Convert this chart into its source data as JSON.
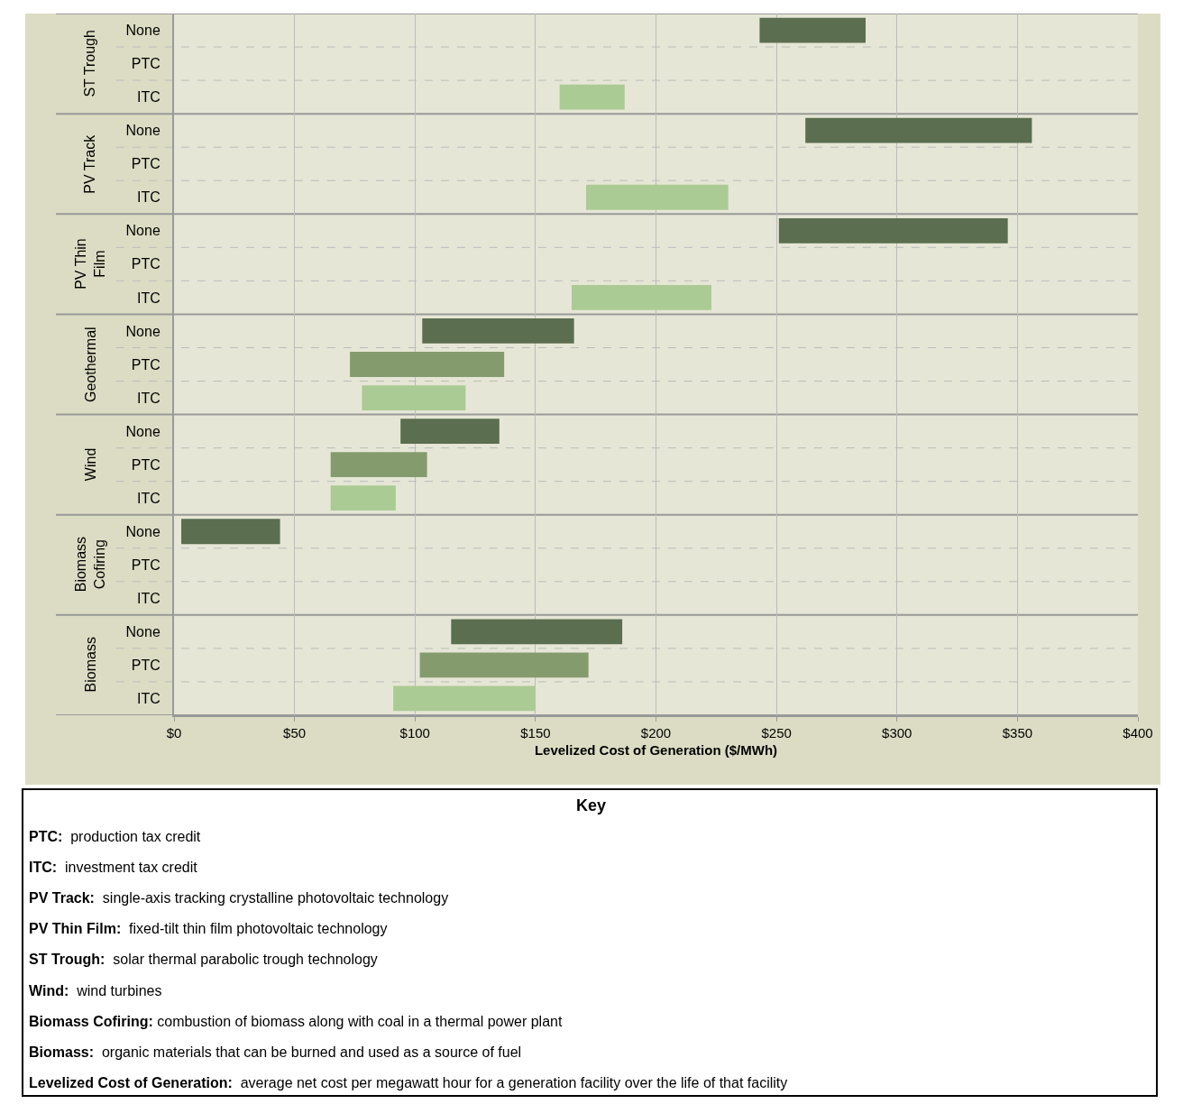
{
  "chart_data": {
    "type": "bar",
    "orientation": "horizontal",
    "xlabel": "Levelized Cost of Generation ($/MWh)",
    "categories": [
      "None",
      "PTC",
      "ITC",
      "None",
      "PTC",
      "ITC",
      "None",
      "PTC",
      "ITC",
      "None",
      "PTC",
      "ITC",
      "None",
      "PTC",
      "ITC",
      "None",
      "PTC",
      "ITC",
      "None",
      "PTC",
      "ITC"
    ],
    "base": [
      243,
      null,
      160,
      262,
      null,
      171,
      251,
      null,
      165,
      103,
      73,
      78,
      94,
      65,
      65,
      3,
      null,
      null,
      115,
      102,
      91
    ],
    "values": [
      44,
      null,
      27,
      94,
      null,
      59,
      95,
      null,
      58,
      63,
      64,
      43,
      41,
      40,
      27,
      41,
      null,
      null,
      71,
      70,
      59
    ],
    "colors": [
      "#5b6e4f",
      "#849b6e",
      "#aacb93",
      "#5b6e4f",
      "#849b6e",
      "#aacb93",
      "#5b6e4f",
      "#849b6e",
      "#aacb93",
      "#5b6e4f",
      "#849b6e",
      "#aacb93",
      "#5b6e4f",
      "#849b6e",
      "#aacb93",
      "#5b6e4f",
      "#849b6e",
      "#aacb93",
      "#5b6e4f",
      "#849b6e",
      "#aacb93"
    ],
    "xlim": [
      0,
      400
    ],
    "xticks": [
      {
        "value": 0,
        "label": "$0"
      },
      {
        "value": 50,
        "label": "$50"
      },
      {
        "value": 100,
        "label": "$100"
      },
      {
        "value": 150,
        "label": "$150"
      },
      {
        "value": 200,
        "label": "$200"
      },
      {
        "value": 250,
        "label": "$250"
      },
      {
        "value": 300,
        "label": "$300"
      },
      {
        "value": 350,
        "label": "$350"
      },
      {
        "value": 400,
        "label": "$400"
      }
    ],
    "grid": "x",
    "annotations": [
      "ST Trough",
      "PV Track",
      "PV Thin Film",
      "Geothermal",
      "Wind",
      "Biomass Cofiring",
      "Biomass",
      "Key",
      "PTC:  production tax credit",
      "ITC:  investment tax credit",
      "PV Track:  single-axis tracking crystalline photovoltaic technology",
      "PV Thin Film:  fixed-tilt thin film photovoltaic technology",
      "ST Trough:  solar thermal parabolic trough technology",
      "Wind:  wind turbines",
      "Biomass Cofiring: combustion of biomass along with coal in a thermal power plant",
      "Biomass:  organic materials that can be burned and used as a source of fuel",
      "Levelized Cost of Generation:  average net cost per megawatt hour for a generation facility over the life of that facility"
    ]
  }
}
